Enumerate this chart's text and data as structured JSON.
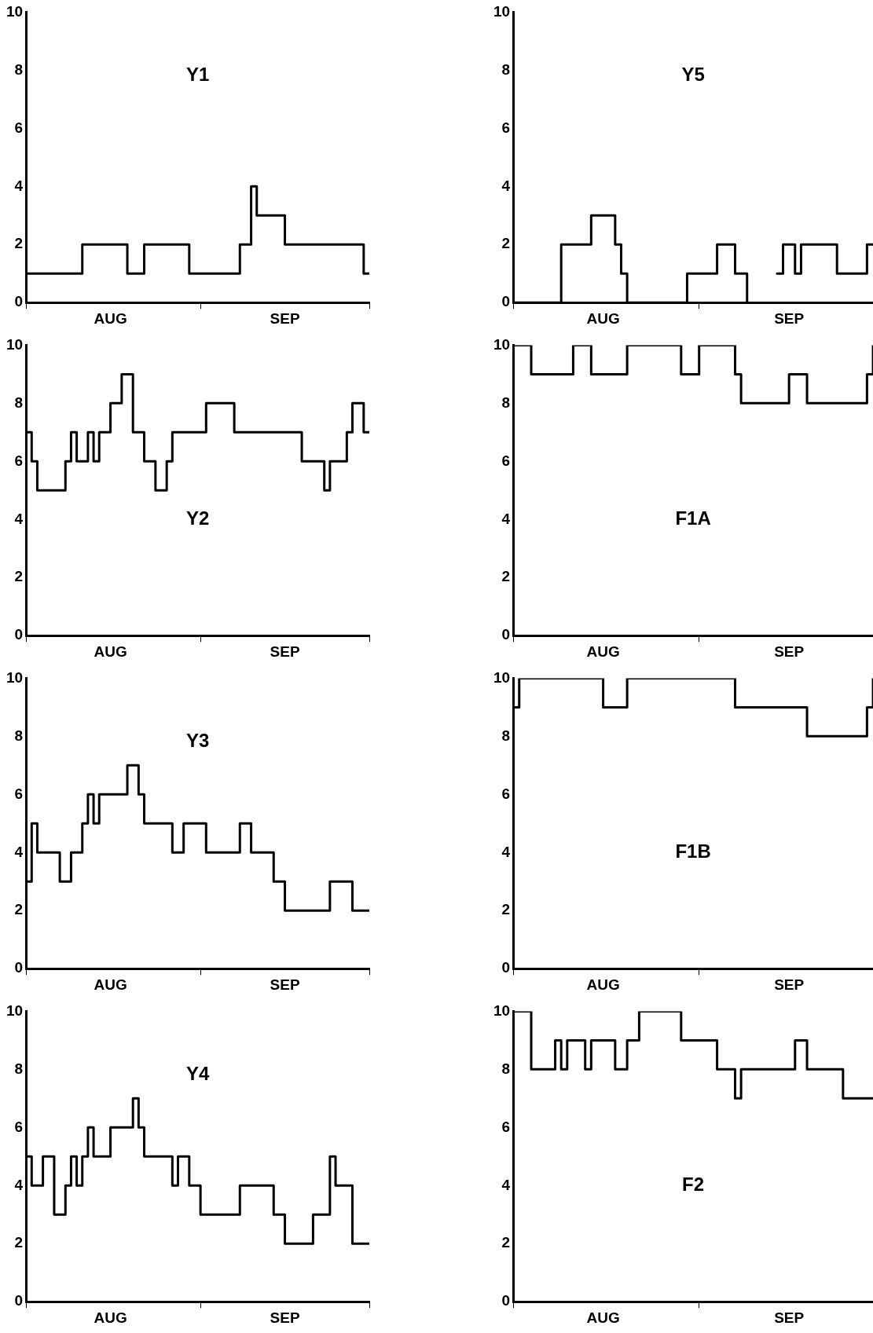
{
  "chart_data": [
    {
      "type": "step",
      "title": "Y1",
      "color": "#000000",
      "marker": "none",
      "grid": false,
      "xlim": [
        "--08-01",
        "--10-01"
      ],
      "ylim": [
        0,
        10
      ],
      "yticks": [
        0,
        2,
        4,
        6,
        8,
        10
      ],
      "xticks": [
        {
          "value": "--08-01",
          "label": null
        },
        {
          "value": "--08-16",
          "label": "AUG"
        },
        {
          "value": "--09-01",
          "label": null
        },
        {
          "value": "--09-16",
          "label": "SEP"
        },
        {
          "value": "--10-01",
          "label": null
        }
      ],
      "x": [
        "--08-01",
        "--08-11",
        "--08-19",
        "--08-22",
        "--08-30",
        "--09-08",
        "--09-10",
        "--09-11",
        "--09-16",
        "--09-30",
        "--10-01"
      ],
      "values": [
        1,
        2,
        1,
        2,
        1,
        2,
        4,
        3,
        2,
        1,
        1
      ]
    },
    {
      "type": "step",
      "title": "Y5",
      "color": "#000000",
      "marker": "none",
      "grid": false,
      "xlim": [
        "--08-01",
        "--09-30"
      ],
      "ylim": [
        0,
        10
      ],
      "yticks": [
        0,
        2,
        4,
        6,
        8,
        10
      ],
      "xticks": [
        {
          "value": "--08-01",
          "label": null
        },
        {
          "value": "--08-16",
          "label": "AUG"
        },
        {
          "value": "--09-01",
          "label": null
        },
        {
          "value": "--09-16",
          "label": "SEP"
        }
      ],
      "x": [
        "--08-01",
        "--08-09",
        "--08-14",
        "--08-18",
        "--08-19",
        "--08-20",
        "--08-30",
        "--09-04",
        "--09-07",
        "--09-09",
        "--09-13",
        "--09-14",
        "--09-15",
        "--09-17",
        "--09-18",
        "--09-24",
        "--09-29",
        "--09-30"
      ],
      "values": [
        0,
        2,
        3,
        2,
        1,
        0,
        1,
        2,
        1,
        0,
        null,
        1,
        2,
        1,
        2,
        1,
        2,
        2
      ]
    },
    {
      "type": "step",
      "title": "Y2",
      "color": "#000000",
      "marker": "none",
      "grid": false,
      "xlim": [
        "--08-01",
        "--10-01"
      ],
      "ylim": [
        0,
        10
      ],
      "yticks": [
        0,
        2,
        4,
        6,
        8,
        10
      ],
      "xticks": [
        {
          "value": "--08-01",
          "label": null
        },
        {
          "value": "--08-16",
          "label": "AUG"
        },
        {
          "value": "--09-01",
          "label": null
        },
        {
          "value": "--09-16",
          "label": "SEP"
        },
        {
          "value": "--10-01",
          "label": null
        }
      ],
      "x": [
        "--08-01",
        "--08-02",
        "--08-03",
        "--08-08",
        "--08-09",
        "--08-10",
        "--08-12",
        "--08-13",
        "--08-14",
        "--08-16",
        "--08-18",
        "--08-20",
        "--08-22",
        "--08-24",
        "--08-26",
        "--08-27",
        "--09-02",
        "--09-07",
        "--09-19",
        "--09-23",
        "--09-24",
        "--09-27",
        "--09-28",
        "--09-30",
        "--10-01"
      ],
      "values": [
        7,
        6,
        5,
        6,
        7,
        6,
        7,
        6,
        7,
        8,
        9,
        7,
        6,
        5,
        6,
        7,
        8,
        7,
        6,
        5,
        6,
        7,
        8,
        7,
        7
      ]
    },
    {
      "type": "step",
      "title": "F1A",
      "color": "#000000",
      "marker": "none",
      "grid": false,
      "xlim": [
        "--08-01",
        "--09-30"
      ],
      "ylim": [
        0,
        10
      ],
      "yticks": [
        0,
        2,
        4,
        6,
        8,
        10
      ],
      "xticks": [
        {
          "value": "--08-01",
          "label": null
        },
        {
          "value": "--08-16",
          "label": "AUG"
        },
        {
          "value": "--09-01",
          "label": null
        },
        {
          "value": "--09-16",
          "label": "SEP"
        }
      ],
      "x": [
        "--08-01",
        "--08-04",
        "--08-11",
        "--08-14",
        "--08-20",
        "--08-29",
        "--09-01",
        "--09-07",
        "--09-08",
        "--09-16",
        "--09-19",
        "--09-29",
        "--09-30"
      ],
      "values": [
        10,
        9,
        10,
        9,
        10,
        9,
        10,
        9,
        8,
        9,
        8,
        9,
        10
      ]
    },
    {
      "type": "step",
      "title": "Y3",
      "color": "#000000",
      "marker": "none",
      "grid": false,
      "xlim": [
        "--08-01",
        "--10-01"
      ],
      "ylim": [
        0,
        10
      ],
      "yticks": [
        0,
        2,
        4,
        6,
        8,
        10
      ],
      "xticks": [
        {
          "value": "--08-01",
          "label": null
        },
        {
          "value": "--08-16",
          "label": "AUG"
        },
        {
          "value": "--09-01",
          "label": null
        },
        {
          "value": "--09-16",
          "label": "SEP"
        },
        {
          "value": "--10-01",
          "label": null
        }
      ],
      "x": [
        "--08-01",
        "--08-02",
        "--08-03",
        "--08-07",
        "--08-09",
        "--08-11",
        "--08-12",
        "--08-13",
        "--08-14",
        "--08-19",
        "--08-21",
        "--08-22",
        "--08-27",
        "--08-29",
        "--09-02",
        "--09-08",
        "--09-10",
        "--09-14",
        "--09-16",
        "--09-24",
        "--09-28",
        "--10-01"
      ],
      "values": [
        3,
        5,
        4,
        3,
        4,
        5,
        6,
        5,
        6,
        7,
        6,
        5,
        4,
        5,
        4,
        5,
        4,
        3,
        2,
        3,
        2,
        2
      ]
    },
    {
      "type": "step",
      "title": "F1B",
      "color": "#000000",
      "marker": "none",
      "grid": false,
      "xlim": [
        "--08-01",
        "--09-30"
      ],
      "ylim": [
        0,
        10
      ],
      "yticks": [
        0,
        2,
        4,
        6,
        8,
        10
      ],
      "xticks": [
        {
          "value": "--08-01",
          "label": null
        },
        {
          "value": "--08-16",
          "label": "AUG"
        },
        {
          "value": "--09-01",
          "label": null
        },
        {
          "value": "--09-16",
          "label": "SEP"
        }
      ],
      "x": [
        "--08-01",
        "--08-02",
        "--08-16",
        "--08-20",
        "--09-07",
        "--09-19",
        "--09-29",
        "--09-30"
      ],
      "values": [
        9,
        10,
        9,
        10,
        9,
        8,
        9,
        10
      ]
    },
    {
      "type": "step",
      "title": "Y4",
      "color": "#000000",
      "marker": "none",
      "grid": false,
      "xlim": [
        "--08-01",
        "--10-01"
      ],
      "ylim": [
        0,
        10
      ],
      "yticks": [
        0,
        2,
        4,
        6,
        8,
        10
      ],
      "xticks": [
        {
          "value": "--08-01",
          "label": null
        },
        {
          "value": "--08-16",
          "label": "AUG"
        },
        {
          "value": "--09-01",
          "label": null
        },
        {
          "value": "--09-16",
          "label": "SEP"
        },
        {
          "value": "--10-01",
          "label": null
        }
      ],
      "x": [
        "--08-01",
        "--08-02",
        "--08-04",
        "--08-06",
        "--08-08",
        "--08-09",
        "--08-10",
        "--08-11",
        "--08-12",
        "--08-13",
        "--08-16",
        "--08-20",
        "--08-21",
        "--08-22",
        "--08-27",
        "--08-28",
        "--08-30",
        "--09-01",
        "--09-08",
        "--09-14",
        "--09-16",
        "--09-21",
        "--09-24",
        "--09-25",
        "--09-28",
        "--10-01"
      ],
      "values": [
        5,
        4,
        5,
        3,
        4,
        5,
        4,
        5,
        6,
        5,
        6,
        7,
        6,
        5,
        4,
        5,
        4,
        3,
        4,
        3,
        2,
        3,
        5,
        4,
        2,
        2
      ]
    },
    {
      "type": "step",
      "title": "F2",
      "color": "#000000",
      "marker": "none",
      "grid": false,
      "xlim": [
        "--08-01",
        "--09-30"
      ],
      "ylim": [
        0,
        10
      ],
      "yticks": [
        0,
        2,
        4,
        6,
        8,
        10
      ],
      "xticks": [
        {
          "value": "--08-01",
          "label": null
        },
        {
          "value": "--08-16",
          "label": "AUG"
        },
        {
          "value": "--09-01",
          "label": null
        },
        {
          "value": "--09-16",
          "label": "SEP"
        }
      ],
      "x": [
        "--08-01",
        "--08-04",
        "--08-08",
        "--08-09",
        "--08-10",
        "--08-13",
        "--08-14",
        "--08-18",
        "--08-20",
        "--08-22",
        "--08-29",
        "--09-04",
        "--09-07",
        "--09-08",
        "--09-17",
        "--09-19",
        "--09-25",
        "--09-30"
      ],
      "values": [
        10,
        8,
        9,
        8,
        9,
        8,
        9,
        8,
        9,
        10,
        9,
        8,
        7,
        8,
        9,
        8,
        7,
        7
      ]
    }
  ]
}
